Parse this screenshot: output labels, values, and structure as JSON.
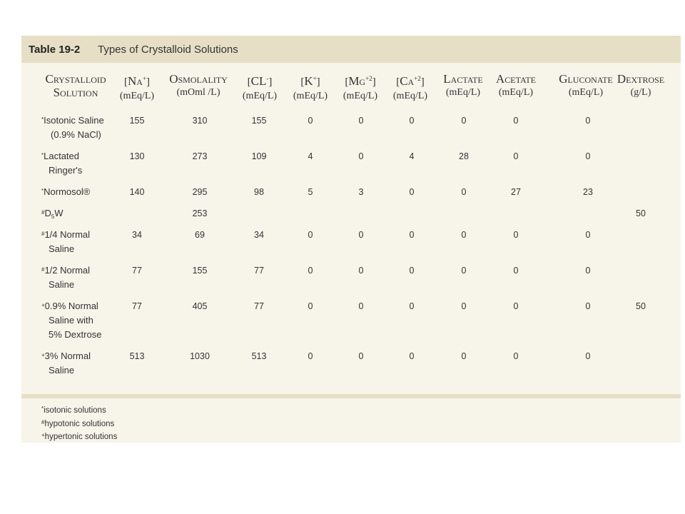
{
  "table": {
    "label": "Table 19-2",
    "title": "Types of Crystalloid Solutions",
    "headers": [
      {
        "kind": "sc",
        "line1": "Crystalloid",
        "line2": "Solution"
      },
      {
        "kind": "bracket",
        "name": "Na",
        "sup": "+",
        "unit": "(mEq/L)"
      },
      {
        "kind": "sc",
        "line1": "Osmolality",
        "line2": "(mOml /L)"
      },
      {
        "kind": "bracket",
        "name": "CL",
        "sup": "-",
        "unit": "(mEq/L)"
      },
      {
        "kind": "bracket",
        "name": "K",
        "sup": "+",
        "unit": "(mEq/L)"
      },
      {
        "kind": "bracket",
        "name": "Mg",
        "sup": "+2",
        "unit": "(mEq/L)"
      },
      {
        "kind": "bracket",
        "name": "Ca",
        "sup": "+2",
        "unit": "(mEq/L)"
      },
      {
        "kind": "sc",
        "line1": "Lactate",
        "line2": "(mEq/L)"
      },
      {
        "kind": "sc",
        "line1": "Acetate",
        "line2": "(mEq/L)"
      },
      {
        "kind": "sc",
        "line1": "Gluconate",
        "line2": "(mEq/L)"
      },
      {
        "kind": "sc",
        "line1": "Dextrose",
        "line2": "(g/L)"
      }
    ],
    "rows": [
      {
        "mark": "*",
        "name": [
          "Isotonic Saline",
          "(0.9% NaCl)"
        ],
        "values": [
          "155",
          "310",
          "155",
          "0",
          "0",
          "0",
          "0",
          "0",
          "0",
          ""
        ]
      },
      {
        "mark": "*",
        "name": [
          "Lactated",
          "Ringer's"
        ],
        "values": [
          "130",
          "273",
          "109",
          "4",
          "0",
          "4",
          "28",
          "0",
          "0",
          ""
        ]
      },
      {
        "mark": "*",
        "name": [
          "Normosol®"
        ],
        "values": [
          "140",
          "295",
          "98",
          "5",
          "3",
          "0",
          "0",
          "27",
          "23",
          ""
        ]
      },
      {
        "mark": "#",
        "name": [
          "D",
          "W"
        ],
        "name_sub": "5",
        "values": [
          "",
          "253",
          "",
          "",
          "",
          "",
          "",
          "",
          "",
          "50"
        ]
      },
      {
        "mark": "#",
        "name": [
          "1/4 Normal",
          "Saline"
        ],
        "values": [
          "34",
          "69",
          "34",
          "0",
          "0",
          "0",
          "0",
          "0",
          "0",
          ""
        ]
      },
      {
        "mark": "#",
        "name": [
          "1/2 Normal",
          "Saline"
        ],
        "values": [
          "77",
          "155",
          "77",
          "0",
          "0",
          "0",
          "0",
          "0",
          "0",
          ""
        ]
      },
      {
        "mark": "+",
        "name": [
          "0.9% Normal",
          "Saline with",
          "5% Dextrose"
        ],
        "values": [
          "77",
          "405",
          "77",
          "0",
          "0",
          "0",
          "0",
          "0",
          "0",
          "50"
        ]
      },
      {
        "mark": "+",
        "name": [
          "3% Normal",
          "Saline"
        ],
        "values": [
          "513",
          "1030",
          "513",
          "0",
          "0",
          "0",
          "0",
          "0",
          "0",
          ""
        ]
      }
    ],
    "legend": [
      {
        "mark": "*",
        "text": "isotonic solutions"
      },
      {
        "mark": "#",
        "text": "hypotonic solutions"
      },
      {
        "mark": "+",
        "text": "hypertonic solutions"
      }
    ]
  }
}
